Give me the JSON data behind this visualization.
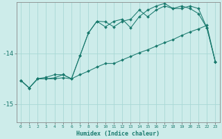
{
  "xlabel": "Humidex (Indice chaleur)",
  "background_color": "#cdecea",
  "grid_color": "#a8d8d5",
  "line_color": "#1a7a6e",
  "xlim": [
    -0.5,
    23.5
  ],
  "ylim": [
    -15.35,
    -13.0
  ],
  "yticks": [
    -15,
    -14
  ],
  "xticks": [
    0,
    1,
    2,
    3,
    4,
    5,
    6,
    7,
    8,
    9,
    10,
    11,
    12,
    13,
    14,
    15,
    16,
    17,
    18,
    19,
    20,
    21,
    22,
    23
  ],
  "line1_x": [
    0,
    1,
    2,
    3,
    4,
    5,
    6,
    7,
    8,
    9,
    10,
    11,
    12,
    13,
    14,
    15,
    16,
    17,
    18,
    19,
    20,
    21,
    22,
    23
  ],
  "line1_y": [
    -14.53,
    -14.68,
    -14.5,
    -14.5,
    -14.5,
    -14.48,
    -14.5,
    -14.42,
    -14.35,
    -14.27,
    -14.2,
    -14.2,
    -14.13,
    -14.06,
    -13.99,
    -13.93,
    -13.86,
    -13.79,
    -13.73,
    -13.65,
    -13.58,
    -13.52,
    -13.45,
    -14.17
  ],
  "line2_x": [
    0,
    1,
    2,
    3,
    4,
    5,
    6,
    7,
    8,
    9,
    10,
    11,
    12,
    13,
    14,
    15,
    16,
    17,
    18,
    19,
    20,
    21,
    22,
    23
  ],
  "line2_y": [
    -14.53,
    -14.68,
    -14.5,
    -14.5,
    -14.48,
    -14.42,
    -14.5,
    -14.05,
    -13.6,
    -13.37,
    -13.38,
    -13.48,
    -13.37,
    -13.33,
    -13.15,
    -13.28,
    -13.15,
    -13.07,
    -13.12,
    -13.12,
    -13.07,
    -13.12,
    -13.5,
    -14.17
  ],
  "line3_x": [
    0,
    1,
    2,
    3,
    4,
    5,
    6,
    7,
    8,
    9,
    10,
    11,
    12,
    13,
    14,
    15,
    16,
    17,
    18,
    19,
    20,
    21,
    22,
    23
  ],
  "line3_y": [
    -14.53,
    -14.68,
    -14.5,
    -14.47,
    -14.42,
    -14.42,
    -14.5,
    -14.05,
    -13.6,
    -13.37,
    -13.48,
    -13.37,
    -13.33,
    -13.5,
    -13.28,
    -13.15,
    -13.07,
    -13.02,
    -13.12,
    -13.07,
    -13.12,
    -13.22,
    -13.5,
    -14.17
  ]
}
